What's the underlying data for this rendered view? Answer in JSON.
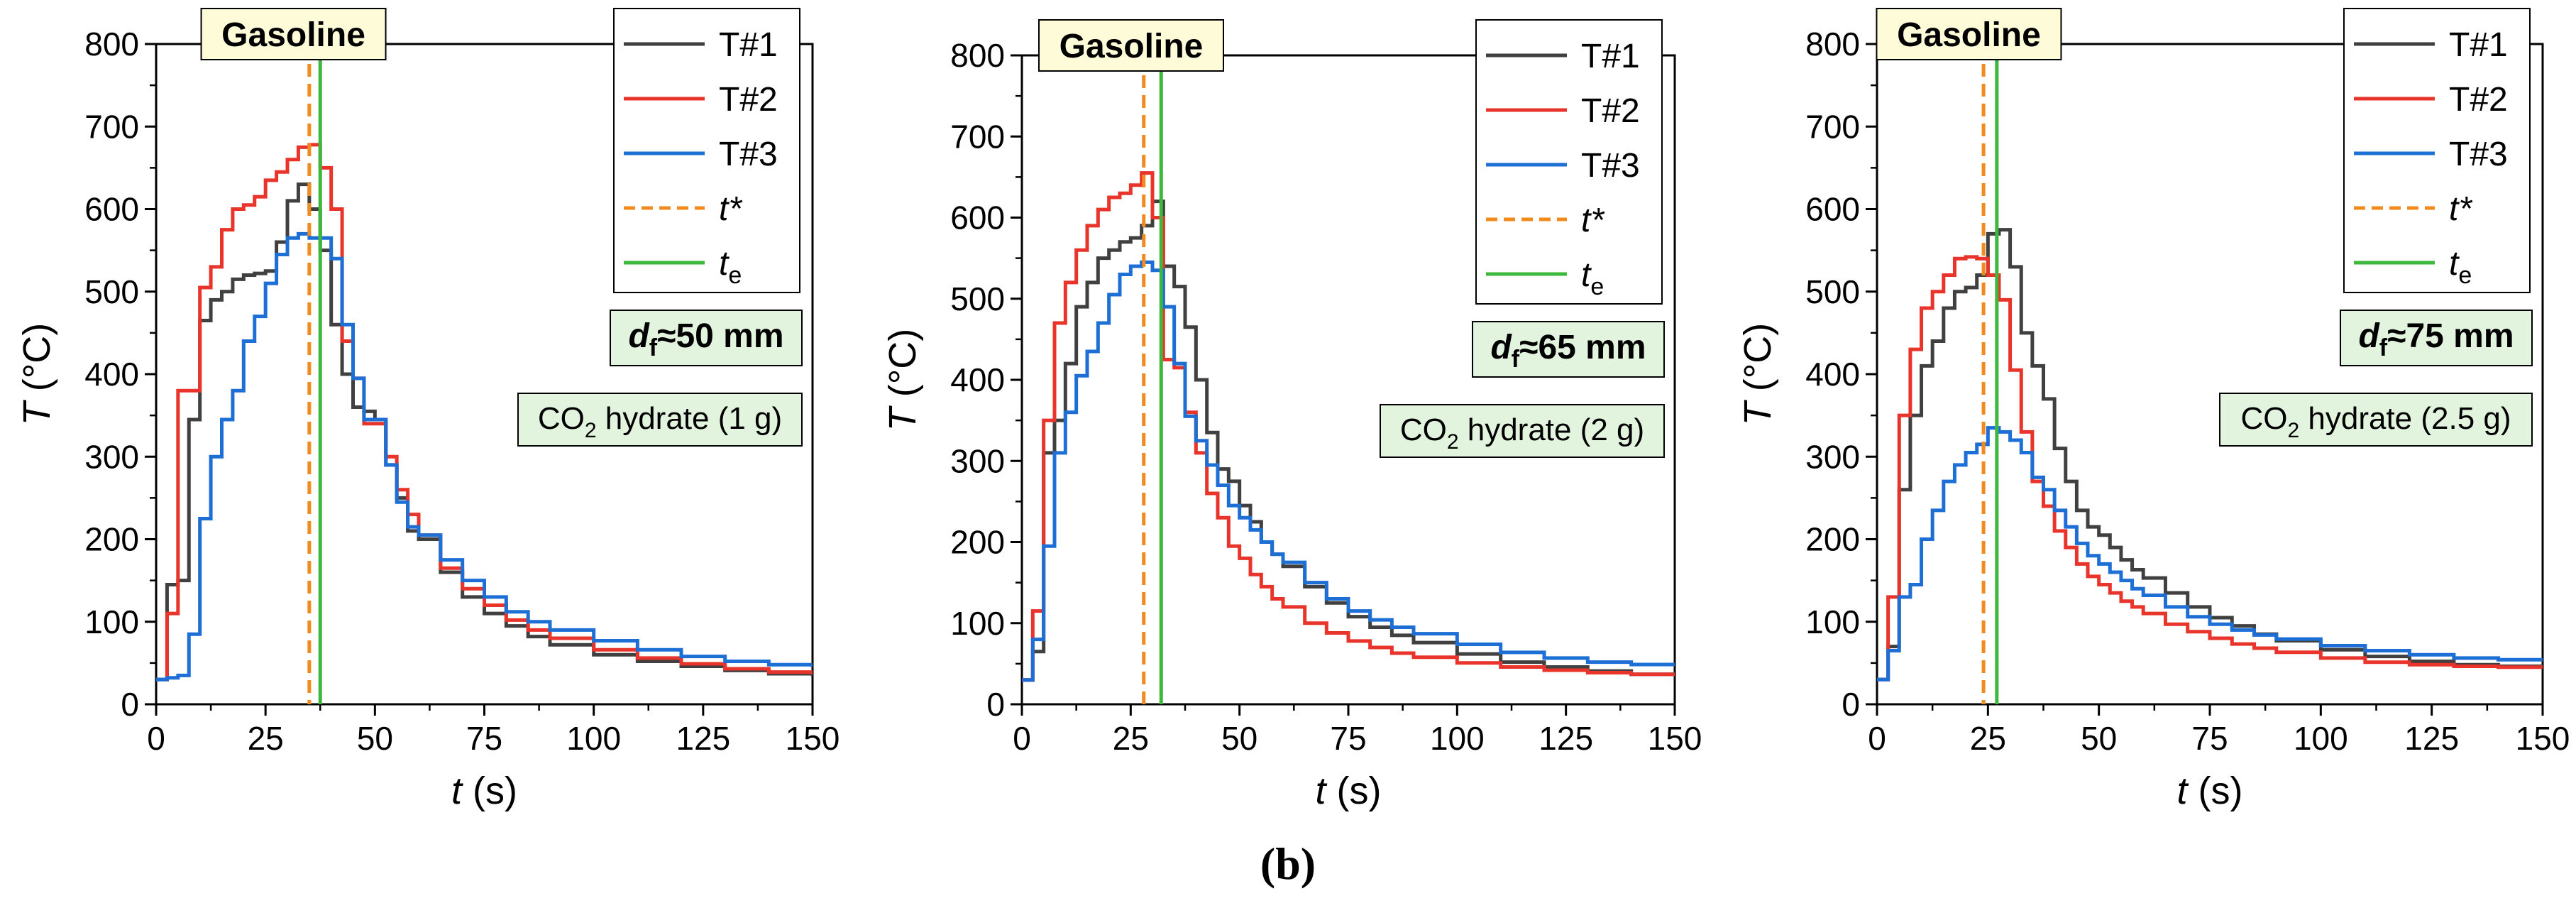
{
  "figure_label": "(b)",
  "chart_data": [
    {
      "type": "line",
      "fuel_label": "Gasoline",
      "diameter_label": {
        "symbol": "d",
        "subscript": "f",
        "text": "≈50 mm"
      },
      "additive_label": {
        "pre": "CO",
        "subscript": "2",
        "post": " hydrate (1 g)"
      },
      "xlabel": {
        "symbol": "t",
        "unit": " (s)"
      },
      "ylabel": {
        "symbol": "T",
        "unit": " (°C)"
      },
      "xlim": [
        0,
        150
      ],
      "ylim": [
        0,
        800
      ],
      "xticks": [
        0,
        25,
        50,
        75,
        100,
        125,
        150
      ],
      "yticks": [
        0,
        100,
        200,
        300,
        400,
        500,
        600,
        700,
        800
      ],
      "legend": [
        {
          "name": "T#1",
          "color": "#404040",
          "style": "solid"
        },
        {
          "name": "T#2",
          "color": "#e8342b",
          "style": "solid"
        },
        {
          "name": "T#3",
          "color": "#1d6fd6",
          "style": "solid"
        },
        {
          "name": "t*",
          "color": "#f28b1e",
          "style": "dashed",
          "italic": true
        },
        {
          "name": "t",
          "subscript": "e",
          "color": "#3cb83c",
          "style": "solid",
          "italic": true
        }
      ],
      "t_star": 35,
      "t_e": 37.5,
      "series": [
        {
          "name": "T#1",
          "color": "#404040",
          "x": [
            0,
            2.5,
            5,
            7.5,
            10,
            12.5,
            15,
            17.5,
            20,
            22.5,
            25,
            27.5,
            30,
            32.5,
            35,
            37.5,
            40,
            42.5,
            45,
            47.5,
            50,
            52.5,
            55,
            57.5,
            60,
            65,
            70,
            75,
            80,
            85,
            90,
            100,
            110,
            120,
            130,
            140,
            150
          ],
          "y": [
            30,
            145,
            150,
            345,
            465,
            490,
            500,
            515,
            520,
            522,
            525,
            560,
            610,
            630,
            600,
            550,
            460,
            400,
            360,
            355,
            345,
            290,
            250,
            210,
            200,
            160,
            130,
            110,
            95,
            82,
            72,
            60,
            52,
            46,
            41,
            37,
            34
          ]
        },
        {
          "name": "T#2",
          "color": "#e8342b",
          "x": [
            0,
            2.5,
            5,
            7.5,
            10,
            12.5,
            15,
            17.5,
            20,
            22.5,
            25,
            27.5,
            30,
            32.5,
            35,
            37.5,
            40,
            42.5,
            45,
            47.5,
            50,
            52.5,
            55,
            57.5,
            60,
            65,
            70,
            75,
            80,
            85,
            90,
            100,
            110,
            120,
            130,
            140,
            150
          ],
          "y": [
            30,
            110,
            380,
            380,
            505,
            530,
            575,
            600,
            605,
            615,
            635,
            645,
            660,
            675,
            678,
            650,
            600,
            440,
            395,
            340,
            340,
            300,
            260,
            230,
            205,
            165,
            140,
            120,
            102,
            90,
            80,
            66,
            56,
            49,
            43,
            39,
            36
          ]
        },
        {
          "name": "T#3",
          "color": "#1d6fd6",
          "x": [
            0,
            2.5,
            5,
            7.5,
            10,
            12.5,
            15,
            17.5,
            20,
            22.5,
            25,
            27.5,
            30,
            32.5,
            35,
            37.5,
            40,
            42.5,
            45,
            47.5,
            50,
            52.5,
            55,
            57.5,
            60,
            65,
            70,
            75,
            80,
            85,
            90,
            100,
            110,
            120,
            130,
            140,
            150
          ],
          "y": [
            30,
            32,
            35,
            85,
            225,
            300,
            345,
            380,
            440,
            470,
            510,
            545,
            565,
            570,
            565,
            565,
            540,
            460,
            395,
            345,
            345,
            290,
            245,
            215,
            205,
            175,
            150,
            130,
            112,
            100,
            90,
            77,
            66,
            58,
            52,
            48,
            45
          ]
        }
      ]
    },
    {
      "type": "line",
      "fuel_label": "Gasoline",
      "diameter_label": {
        "symbol": "d",
        "subscript": "f",
        "text": "≈65 mm"
      },
      "additive_label": {
        "pre": "CO",
        "subscript": "2",
        "post": " hydrate (2 g)"
      },
      "xlabel": {
        "symbol": "t",
        "unit": " (s)"
      },
      "ylabel": {
        "symbol": "T",
        "unit": " (°C)"
      },
      "xlim": [
        0,
        150
      ],
      "ylim": [
        0,
        800
      ],
      "xticks": [
        0,
        25,
        50,
        75,
        100,
        125,
        150
      ],
      "yticks": [
        0,
        100,
        200,
        300,
        400,
        500,
        600,
        700,
        800
      ],
      "legend": [
        {
          "name": "T#1",
          "color": "#404040",
          "style": "solid"
        },
        {
          "name": "T#2",
          "color": "#e8342b",
          "style": "solid"
        },
        {
          "name": "T#3",
          "color": "#1d6fd6",
          "style": "solid"
        },
        {
          "name": "t*",
          "color": "#f28b1e",
          "style": "dashed",
          "italic": true
        },
        {
          "name": "t",
          "subscript": "e",
          "color": "#3cb83c",
          "style": "solid",
          "italic": true
        }
      ],
      "t_star": 28,
      "t_e": 32,
      "series": [
        {
          "name": "T#1",
          "color": "#404040",
          "x": [
            0,
            2.5,
            5,
            7.5,
            10,
            12.5,
            15,
            17.5,
            20,
            22.5,
            25,
            27.5,
            30,
            32.5,
            35,
            37.5,
            40,
            42.5,
            45,
            47.5,
            50,
            52.5,
            55,
            57.5,
            60,
            65,
            70,
            75,
            80,
            85,
            90,
            100,
            110,
            120,
            130,
            140,
            150
          ],
          "y": [
            30,
            65,
            310,
            350,
            420,
            490,
            520,
            550,
            560,
            570,
            575,
            590,
            620,
            540,
            515,
            465,
            400,
            335,
            290,
            275,
            245,
            225,
            200,
            185,
            170,
            145,
            125,
            108,
            95,
            85,
            76,
            62,
            52,
            46,
            41,
            37,
            35
          ]
        },
        {
          "name": "T#2",
          "color": "#e8342b",
          "x": [
            0,
            2.5,
            5,
            7.5,
            10,
            12.5,
            15,
            17.5,
            20,
            22.5,
            25,
            27.5,
            30,
            32.5,
            35,
            37.5,
            40,
            42.5,
            45,
            47.5,
            50,
            52.5,
            55,
            57.5,
            60,
            65,
            70,
            75,
            80,
            85,
            90,
            100,
            110,
            120,
            130,
            140,
            150
          ],
          "y": [
            30,
            115,
            350,
            470,
            520,
            560,
            590,
            610,
            625,
            630,
            640,
            655,
            600,
            425,
            415,
            360,
            310,
            260,
            230,
            195,
            180,
            160,
            145,
            130,
            120,
            100,
            88,
            78,
            70,
            63,
            58,
            51,
            46,
            42,
            39,
            37,
            35
          ]
        },
        {
          "name": "T#3",
          "color": "#1d6fd6",
          "x": [
            0,
            2.5,
            5,
            7.5,
            10,
            12.5,
            15,
            17.5,
            20,
            22.5,
            25,
            27.5,
            30,
            32.5,
            35,
            37.5,
            40,
            42.5,
            45,
            47.5,
            50,
            52.5,
            55,
            57.5,
            60,
            65,
            70,
            75,
            80,
            85,
            90,
            100,
            110,
            120,
            130,
            140,
            150
          ],
          "y": [
            30,
            80,
            195,
            310,
            360,
            405,
            435,
            470,
            505,
            530,
            540,
            545,
            535,
            490,
            420,
            355,
            325,
            295,
            270,
            245,
            230,
            215,
            200,
            185,
            175,
            150,
            130,
            115,
            104,
            95,
            87,
            74,
            64,
            57,
            52,
            49,
            47
          ]
        }
      ]
    },
    {
      "type": "line",
      "fuel_label": "Gasoline",
      "diameter_label": {
        "symbol": "d",
        "subscript": "f",
        "text": "≈75 mm"
      },
      "additive_label": {
        "pre": "CO",
        "subscript": "2",
        "post": " hydrate (2.5 g)"
      },
      "xlabel": {
        "symbol": "t",
        "unit": " (s)"
      },
      "ylabel": {
        "symbol": "T",
        "unit": " (°C)"
      },
      "xlim": [
        0,
        150
      ],
      "ylim": [
        0,
        800
      ],
      "xticks": [
        0,
        25,
        50,
        75,
        100,
        125,
        150
      ],
      "yticks": [
        0,
        100,
        200,
        300,
        400,
        500,
        600,
        700,
        800
      ],
      "legend": [
        {
          "name": "T#1",
          "color": "#404040",
          "style": "solid"
        },
        {
          "name": "T#2",
          "color": "#e8342b",
          "style": "solid"
        },
        {
          "name": "T#3",
          "color": "#1d6fd6",
          "style": "solid"
        },
        {
          "name": "t*",
          "color": "#f28b1e",
          "style": "dashed",
          "italic": true
        },
        {
          "name": "t",
          "subscript": "e",
          "color": "#3cb83c",
          "style": "solid",
          "italic": true
        }
      ],
      "t_star": 24,
      "t_e": 27,
      "series": [
        {
          "name": "T#1",
          "color": "#404040",
          "x": [
            0,
            2.5,
            5,
            7.5,
            10,
            12.5,
            15,
            17.5,
            20,
            22.5,
            25,
            27.5,
            30,
            32.5,
            35,
            37.5,
            40,
            42.5,
            45,
            47.5,
            50,
            52.5,
            55,
            57.5,
            60,
            65,
            70,
            75,
            80,
            85,
            90,
            100,
            110,
            120,
            130,
            140,
            150
          ],
          "y": [
            30,
            70,
            260,
            350,
            410,
            440,
            480,
            500,
            505,
            520,
            570,
            575,
            530,
            450,
            410,
            370,
            310,
            270,
            235,
            215,
            205,
            190,
            175,
            163,
            153,
            135,
            118,
            105,
            95,
            85,
            77,
            66,
            58,
            52,
            48,
            46,
            45
          ]
        },
        {
          "name": "T#2",
          "color": "#e8342b",
          "x": [
            0,
            2.5,
            5,
            7.5,
            10,
            12.5,
            15,
            17.5,
            20,
            22.5,
            25,
            27.5,
            30,
            32.5,
            35,
            37.5,
            40,
            42.5,
            45,
            47.5,
            50,
            52.5,
            55,
            57.5,
            60,
            65,
            70,
            75,
            80,
            85,
            90,
            100,
            110,
            120,
            130,
            140,
            150
          ],
          "y": [
            30,
            130,
            350,
            430,
            480,
            500,
            520,
            540,
            542,
            540,
            520,
            490,
            405,
            330,
            270,
            240,
            210,
            190,
            170,
            155,
            145,
            135,
            125,
            118,
            110,
            97,
            88,
            80,
            73,
            68,
            63,
            56,
            51,
            48,
            46,
            45,
            44
          ]
        },
        {
          "name": "T#3",
          "color": "#1d6fd6",
          "x": [
            0,
            2.5,
            5,
            7.5,
            10,
            12.5,
            15,
            17.5,
            20,
            22.5,
            25,
            27.5,
            30,
            32.5,
            35,
            37.5,
            40,
            42.5,
            45,
            47.5,
            50,
            52.5,
            55,
            57.5,
            60,
            65,
            70,
            75,
            80,
            85,
            90,
            100,
            110,
            120,
            130,
            140,
            150
          ],
          "y": [
            30,
            65,
            130,
            145,
            200,
            235,
            270,
            290,
            305,
            315,
            335,
            330,
            320,
            305,
            275,
            260,
            235,
            215,
            195,
            180,
            170,
            160,
            150,
            140,
            132,
            118,
            106,
            97,
            90,
            84,
            79,
            71,
            65,
            60,
            56,
            54,
            52
          ]
        }
      ]
    }
  ]
}
